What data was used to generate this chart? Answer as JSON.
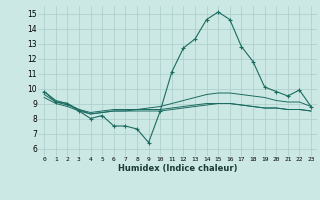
{
  "xlabel": "Humidex (Indice chaleur)",
  "background_color": "#cce8e4",
  "grid_color": "#aaccca",
  "line_color": "#1a6b60",
  "xlim": [
    -0.5,
    23.5
  ],
  "ylim": [
    5.5,
    15.5
  ],
  "yticks": [
    6,
    7,
    8,
    9,
    10,
    11,
    12,
    13,
    14,
    15
  ],
  "xticks": [
    0,
    1,
    2,
    3,
    4,
    5,
    6,
    7,
    8,
    9,
    10,
    11,
    12,
    13,
    14,
    15,
    16,
    17,
    18,
    19,
    20,
    21,
    22,
    23
  ],
  "curve1_x": [
    0,
    1,
    2,
    3,
    4,
    5,
    6,
    7,
    8,
    9,
    10,
    11,
    12,
    13,
    14,
    15,
    16,
    17,
    18,
    19,
    20,
    21,
    22,
    23
  ],
  "curve1_y": [
    9.8,
    9.1,
    9.0,
    8.5,
    8.0,
    8.2,
    7.5,
    7.5,
    7.3,
    6.4,
    8.5,
    11.1,
    12.7,
    13.3,
    14.6,
    15.1,
    14.6,
    12.8,
    11.8,
    10.1,
    9.8,
    9.5,
    9.9,
    8.8
  ],
  "curve2_x": [
    0,
    1,
    2,
    3,
    4,
    5,
    6,
    7,
    8,
    9,
    10,
    11,
    12,
    13,
    14,
    15,
    16,
    17,
    18,
    19,
    20,
    21,
    22,
    23
  ],
  "curve2_y": [
    9.8,
    9.2,
    9.0,
    8.6,
    8.3,
    8.4,
    8.5,
    8.5,
    8.6,
    8.7,
    8.8,
    9.0,
    9.2,
    9.4,
    9.6,
    9.7,
    9.7,
    9.6,
    9.5,
    9.4,
    9.2,
    9.1,
    9.1,
    8.8
  ],
  "curve3_x": [
    0,
    1,
    2,
    3,
    4,
    5,
    6,
    7,
    8,
    9,
    10,
    11,
    12,
    13,
    14,
    15,
    16,
    17,
    18,
    19,
    20,
    21,
    22,
    23
  ],
  "curve3_y": [
    9.4,
    9.0,
    8.8,
    8.5,
    8.3,
    8.4,
    8.5,
    8.5,
    8.5,
    8.5,
    8.5,
    8.6,
    8.7,
    8.8,
    8.9,
    9.0,
    9.0,
    8.9,
    8.8,
    8.7,
    8.7,
    8.6,
    8.6,
    8.5
  ],
  "curve4_x": [
    0,
    1,
    2,
    3,
    4,
    5,
    6,
    7,
    8,
    9,
    10,
    11,
    12,
    13,
    14,
    15,
    16,
    17,
    18,
    19,
    20,
    21,
    22,
    23
  ],
  "curve4_y": [
    9.6,
    9.1,
    8.9,
    8.6,
    8.4,
    8.5,
    8.6,
    8.6,
    8.6,
    8.6,
    8.6,
    8.7,
    8.8,
    8.9,
    9.0,
    9.0,
    9.0,
    8.9,
    8.8,
    8.7,
    8.7,
    8.6,
    8.6,
    8.5
  ]
}
